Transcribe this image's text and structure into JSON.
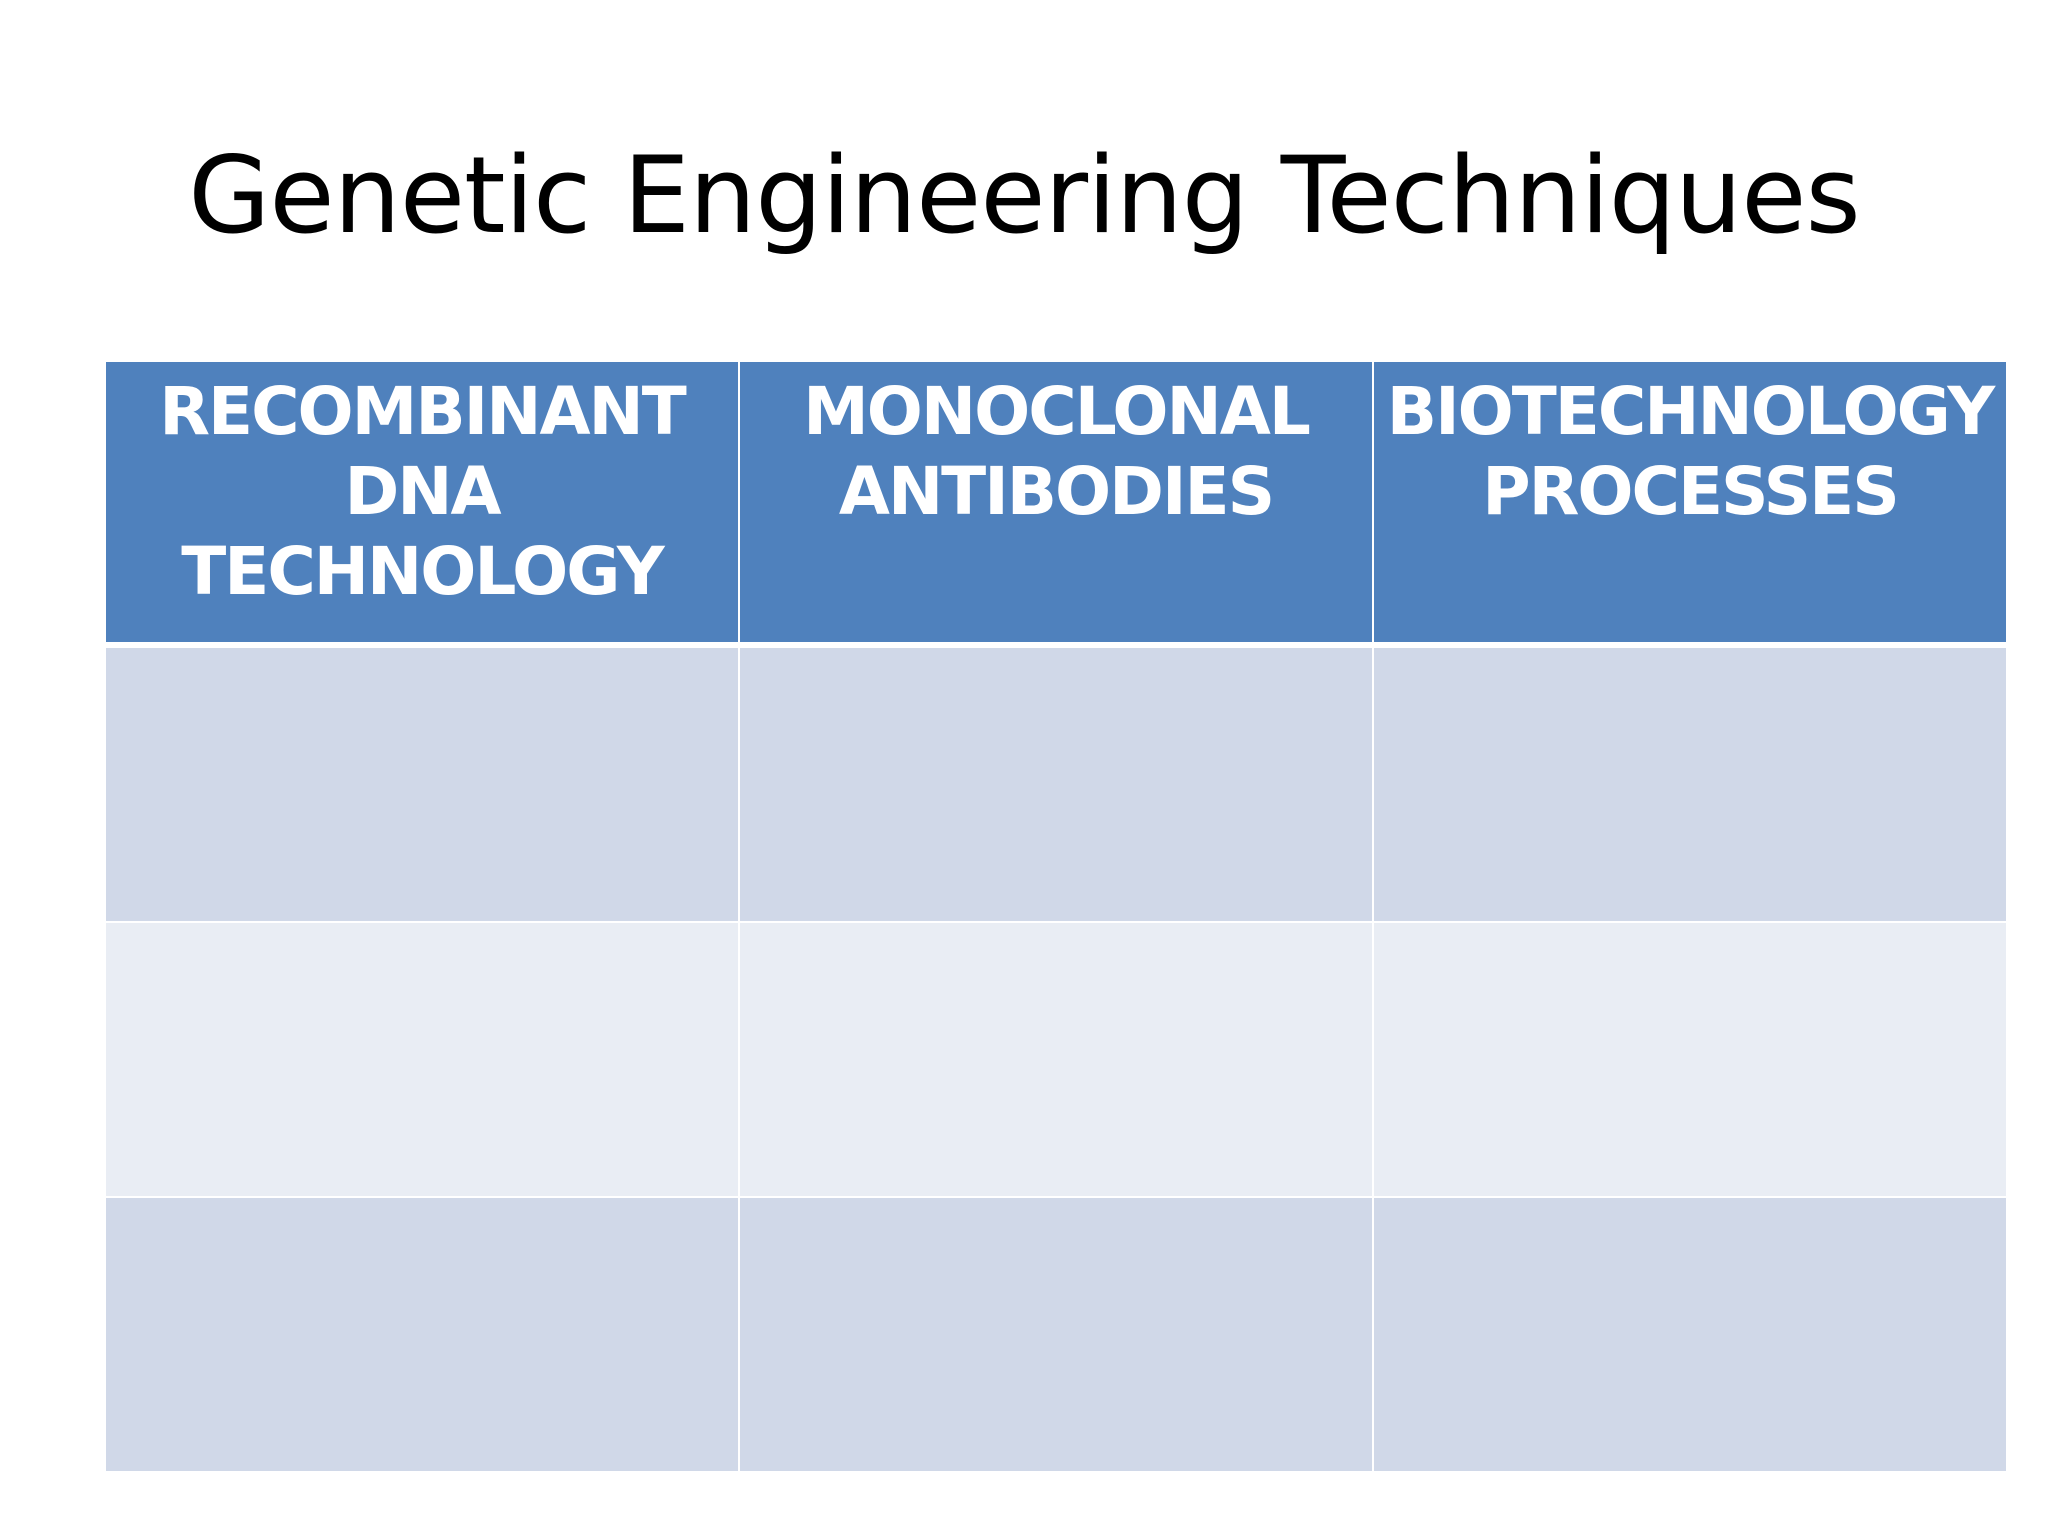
{
  "slide": {
    "title": "Genetic Engineering Techniques"
  },
  "table": {
    "headers": [
      {
        "lines": [
          "RECOMBINANT",
          "DNA",
          "TECHNOLOGY"
        ]
      },
      {
        "lines": [
          "MONOCLONAL",
          "ANTIBODIES"
        ]
      },
      {
        "lines": [
          "BIOTECHNOLOGY",
          "PROCESSES"
        ]
      }
    ],
    "rows": [
      [
        "",
        "",
        ""
      ],
      [
        "",
        "",
        ""
      ],
      [
        "",
        "",
        ""
      ]
    ],
    "colors": {
      "header_bg": "#4f81bd",
      "header_text": "#ffffff",
      "band_dark": "#d0d8e8",
      "band_light": "#e9edf4"
    }
  }
}
